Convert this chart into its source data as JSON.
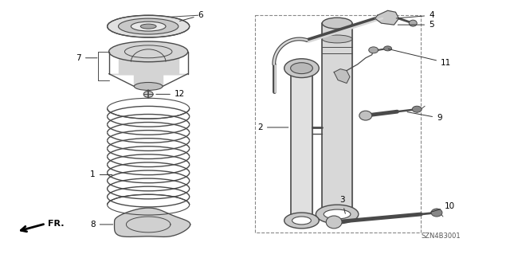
{
  "bg_color": "#ffffff",
  "line_color": "#4a4a4a",
  "text_color": "#000000",
  "diagram_code": "SZN4B3001",
  "figsize": [
    6.4,
    3.19
  ],
  "dpi": 100
}
